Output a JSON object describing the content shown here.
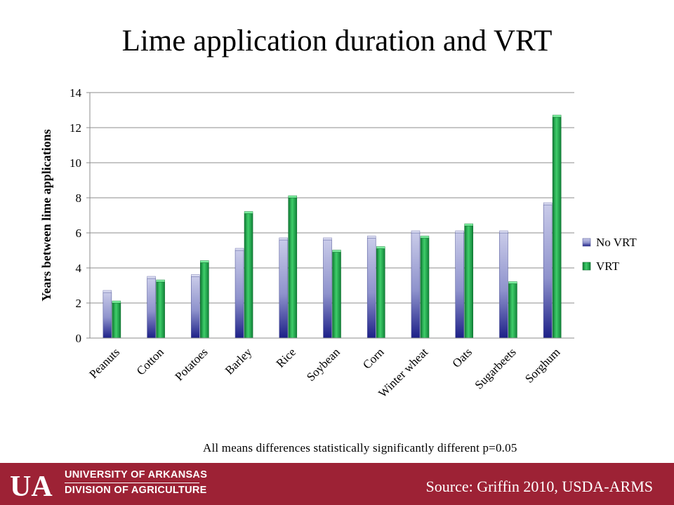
{
  "title": "Lime application duration and VRT",
  "note": "All means differences statistically significantly different p=0.05",
  "footer": {
    "logo_text": "UA",
    "org_line1": "UNIVERSITY OF ARKANSAS",
    "org_line2": "DIVISION OF AGRICULTURE",
    "source": "Source: Griffin 2010, USDA-ARMS",
    "color": "#9d2235"
  },
  "chart_data": {
    "type": "bar",
    "title": "",
    "xlabel": "",
    "ylabel": "Years between lime applications",
    "ylim": [
      0,
      14
    ],
    "yticks": [
      0,
      2,
      4,
      6,
      8,
      10,
      12,
      14
    ],
    "grid": true,
    "legend_position": "right",
    "categories": [
      "Peanuts",
      "Cotton",
      "Potatoes",
      "Barley",
      "Rice",
      "Soybean",
      "Corn",
      "Winter wheat",
      "Oats",
      "Sugarbeets",
      "Sorghum"
    ],
    "series": [
      {
        "name": "No VRT",
        "color": "#6f74b8",
        "values": [
          2.6,
          3.4,
          3.5,
          5.0,
          5.6,
          5.6,
          5.7,
          6.0,
          6.0,
          6.0,
          7.6
        ]
      },
      {
        "name": "VRT",
        "color": "#1faa4b",
        "values": [
          2.0,
          3.2,
          4.3,
          7.1,
          8.0,
          4.9,
          5.1,
          5.7,
          6.4,
          3.1,
          12.6
        ]
      }
    ]
  }
}
